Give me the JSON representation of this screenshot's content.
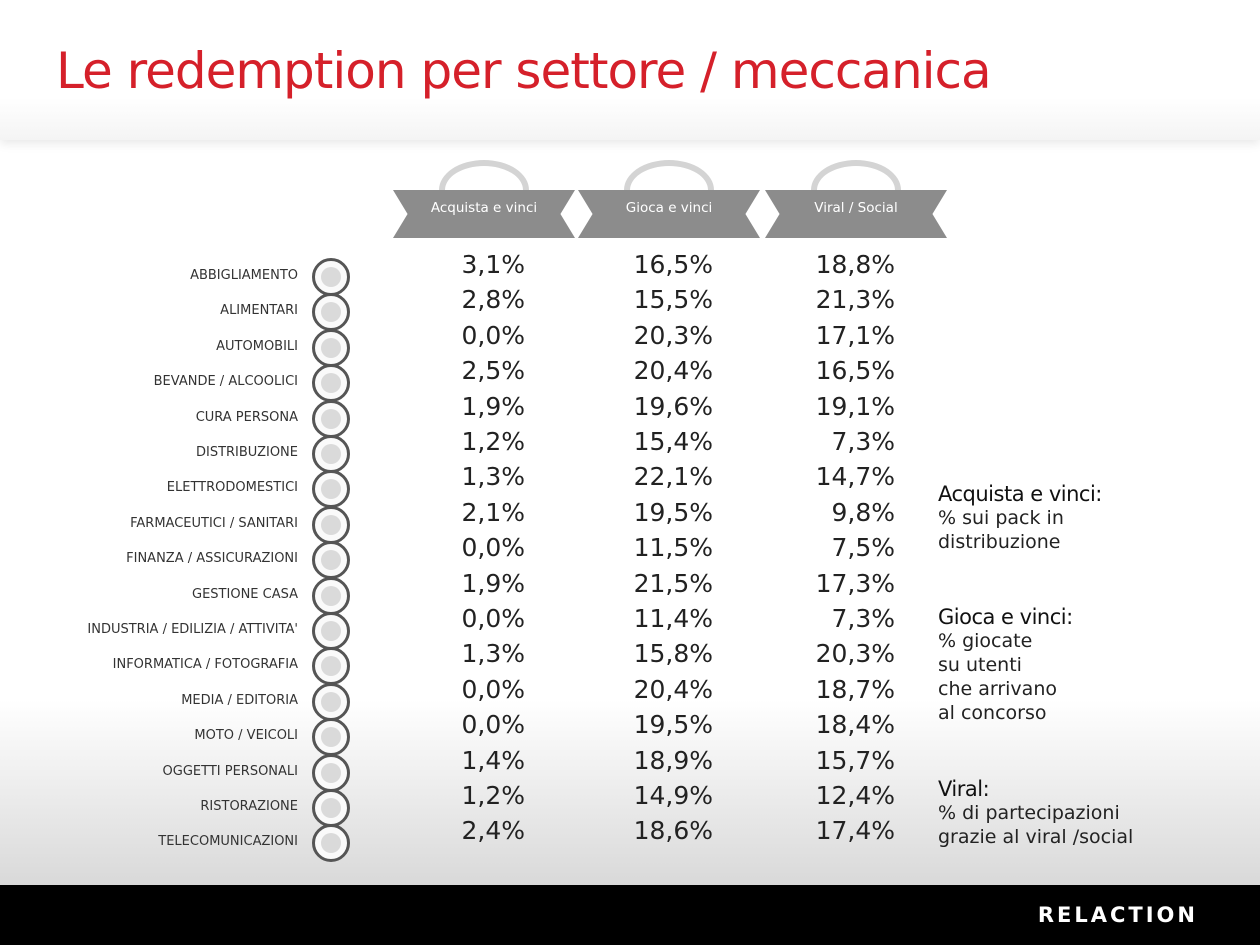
{
  "title": "Le redemption per settore / meccanica",
  "brand": "RELACTION",
  "chart_data": {
    "type": "table",
    "columns": [
      "Acquista e vinci",
      "Gioca e vinci",
      "Viral / Social"
    ],
    "rows": [
      {
        "label": "ABBIGLIAMENTO",
        "values": [
          "3,1%",
          "16,5%",
          "18,8%"
        ]
      },
      {
        "label": "ALIMENTARI",
        "values": [
          "2,8%",
          "15,5%",
          "21,3%"
        ]
      },
      {
        "label": "AUTOMOBILI",
        "values": [
          "0,0%",
          "20,3%",
          "17,1%"
        ]
      },
      {
        "label": "BEVANDE / ALCOOLICI",
        "values": [
          "2,5%",
          "20,4%",
          "16,5%"
        ]
      },
      {
        "label": "CURA PERSONA",
        "values": [
          "1,9%",
          "19,6%",
          "19,1%"
        ]
      },
      {
        "label": "DISTRIBUZIONE",
        "values": [
          "1,2%",
          "15,4%",
          "7,3%"
        ]
      },
      {
        "label": "ELETTRODOMESTICI",
        "values": [
          "1,3%",
          "22,1%",
          "14,7%"
        ]
      },
      {
        "label": "FARMACEUTICI / SANITARI",
        "values": [
          "2,1%",
          "19,5%",
          "9,8%"
        ]
      },
      {
        "label": "FINANZA / ASSICURAZIONI",
        "values": [
          "0,0%",
          "11,5%",
          "7,5%"
        ]
      },
      {
        "label": "GESTIONE CASA",
        "values": [
          "1,9%",
          "21,5%",
          "17,3%"
        ]
      },
      {
        "label": "INDUSTRIA / EDILIZIA / ATTIVITA'",
        "values": [
          "0,0%",
          "11,4%",
          "7,3%"
        ]
      },
      {
        "label": "INFORMATICA / FOTOGRAFIA",
        "values": [
          "1,3%",
          "15,8%",
          "20,3%"
        ]
      },
      {
        "label": "MEDIA / EDITORIA",
        "values": [
          "0,0%",
          "20,4%",
          "18,7%"
        ]
      },
      {
        "label": "MOTO / VEICOLI",
        "values": [
          "0,0%",
          "19,5%",
          "18,4%"
        ]
      },
      {
        "label": "OGGETTI PERSONALI",
        "values": [
          "1,4%",
          "18,9%",
          "15,7%"
        ]
      },
      {
        "label": "RISTORAZIONE",
        "values": [
          "1,2%",
          "14,9%",
          "12,4%"
        ]
      },
      {
        "label": "TELECOMUNICAZIONI",
        "values": [
          "2,4%",
          "18,6%",
          "17,4%"
        ]
      }
    ]
  },
  "legend": [
    {
      "title": "Acquista e vinci:",
      "desc": "% sui pack in\ndistribuzione"
    },
    {
      "title": "Gioca e vinci:",
      "desc": "% giocate\nsu utenti\nche arrivano\nal concorso"
    },
    {
      "title": "Viral:",
      "desc": "% di partecipazioni\ngrazie al viral /social"
    }
  ]
}
